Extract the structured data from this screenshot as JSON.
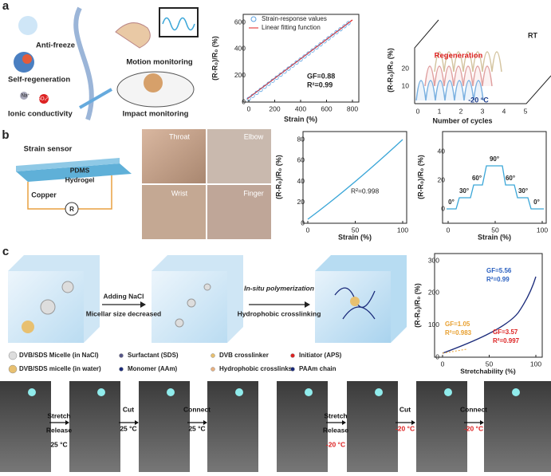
{
  "panel_labels": [
    "a",
    "b",
    "c"
  ],
  "a": {
    "illustration": [
      "Anti-freeze",
      "Self-regeneration",
      "Motion monitoring",
      "Ionic conductivity",
      "Impact monitoring",
      "Na⁺",
      "SO₄²⁻"
    ],
    "plot1": {
      "ylabel": "(R-R₀)/R₀ (%)",
      "xlabel": "Strain (%)",
      "legend": [
        "Strain-response values",
        "Linear fitting function"
      ],
      "xticks": [
        0,
        200,
        400,
        600,
        800
      ],
      "yticks": [
        0,
        200,
        400,
        600
      ],
      "annotations": [
        "GF=0.88",
        "R²=0.99"
      ]
    },
    "plot2": {
      "ylabel": "(R-R₀)/R₀ (%)",
      "xlabel": "Number of cycles",
      "xticks": [
        0,
        1,
        2,
        3,
        4,
        5
      ],
      "yticks": [
        10,
        20
      ],
      "annotations": [
        "RT",
        "Regeneration",
        "-20 °C"
      ]
    }
  },
  "b": {
    "sensor": [
      "Strain sensor",
      "PDMS",
      "Hydrogel",
      "Copper",
      "R"
    ],
    "photos": [
      "Throat",
      "Elbow",
      "Wrist",
      "Finger"
    ],
    "plot3": {
      "ylabel": "(R-R₀)/R₀ (%)",
      "xlabel": "Strain (%)",
      "xticks": [
        0,
        50,
        100
      ],
      "yticks": [
        0,
        20,
        40,
        60,
        80
      ],
      "annotations": [
        "R²=0.998"
      ]
    },
    "plot4": {
      "ylabel": "(R-R₀)/R₀ (%)",
      "xlabel": "Strain (%)",
      "xticks": [
        0,
        50,
        100
      ],
      "yticks": [
        0,
        20,
        40
      ],
      "annotations": [
        "0°",
        "30°",
        "60°",
        "90°",
        "60°",
        "30°",
        "0°"
      ]
    }
  },
  "c": {
    "steps": [
      "Adding NaCl",
      "Micellar size decreased",
      "In-situ polymerization",
      "Hydrophobic crosslinking"
    ],
    "legend": [
      "DVB/SDS Micelle (in NaCl)",
      "Surfactant (SDS)",
      "DVB crosslinker",
      "Initiator (APS)",
      "DVB/SDS micelle (in water)",
      "Monomer (AAm)",
      "Hydrophobic crosslinks",
      "PAAm chain"
    ],
    "plot5": {
      "ylabel": "(R-R₀)/R₀ (%)",
      "xlabel": "Stretchability (%)",
      "xticks": [
        0,
        50,
        100
      ],
      "yticks": [
        0,
        100,
        200,
        300
      ],
      "annotations": [
        "GF=5.56",
        "R²=0.99",
        "GF=1.05",
        "R²=0.983",
        "GF=3.57",
        "R²=0.997"
      ]
    }
  },
  "photo_strip": [
    "Stretch",
    "Release",
    "25 °C",
    "Cut",
    "25 °C",
    "Connect",
    "25 °C",
    "Stretch",
    "Release",
    "-20 °C",
    "Cut",
    "-20 °C",
    "Connect",
    "-20 °C"
  ]
}
